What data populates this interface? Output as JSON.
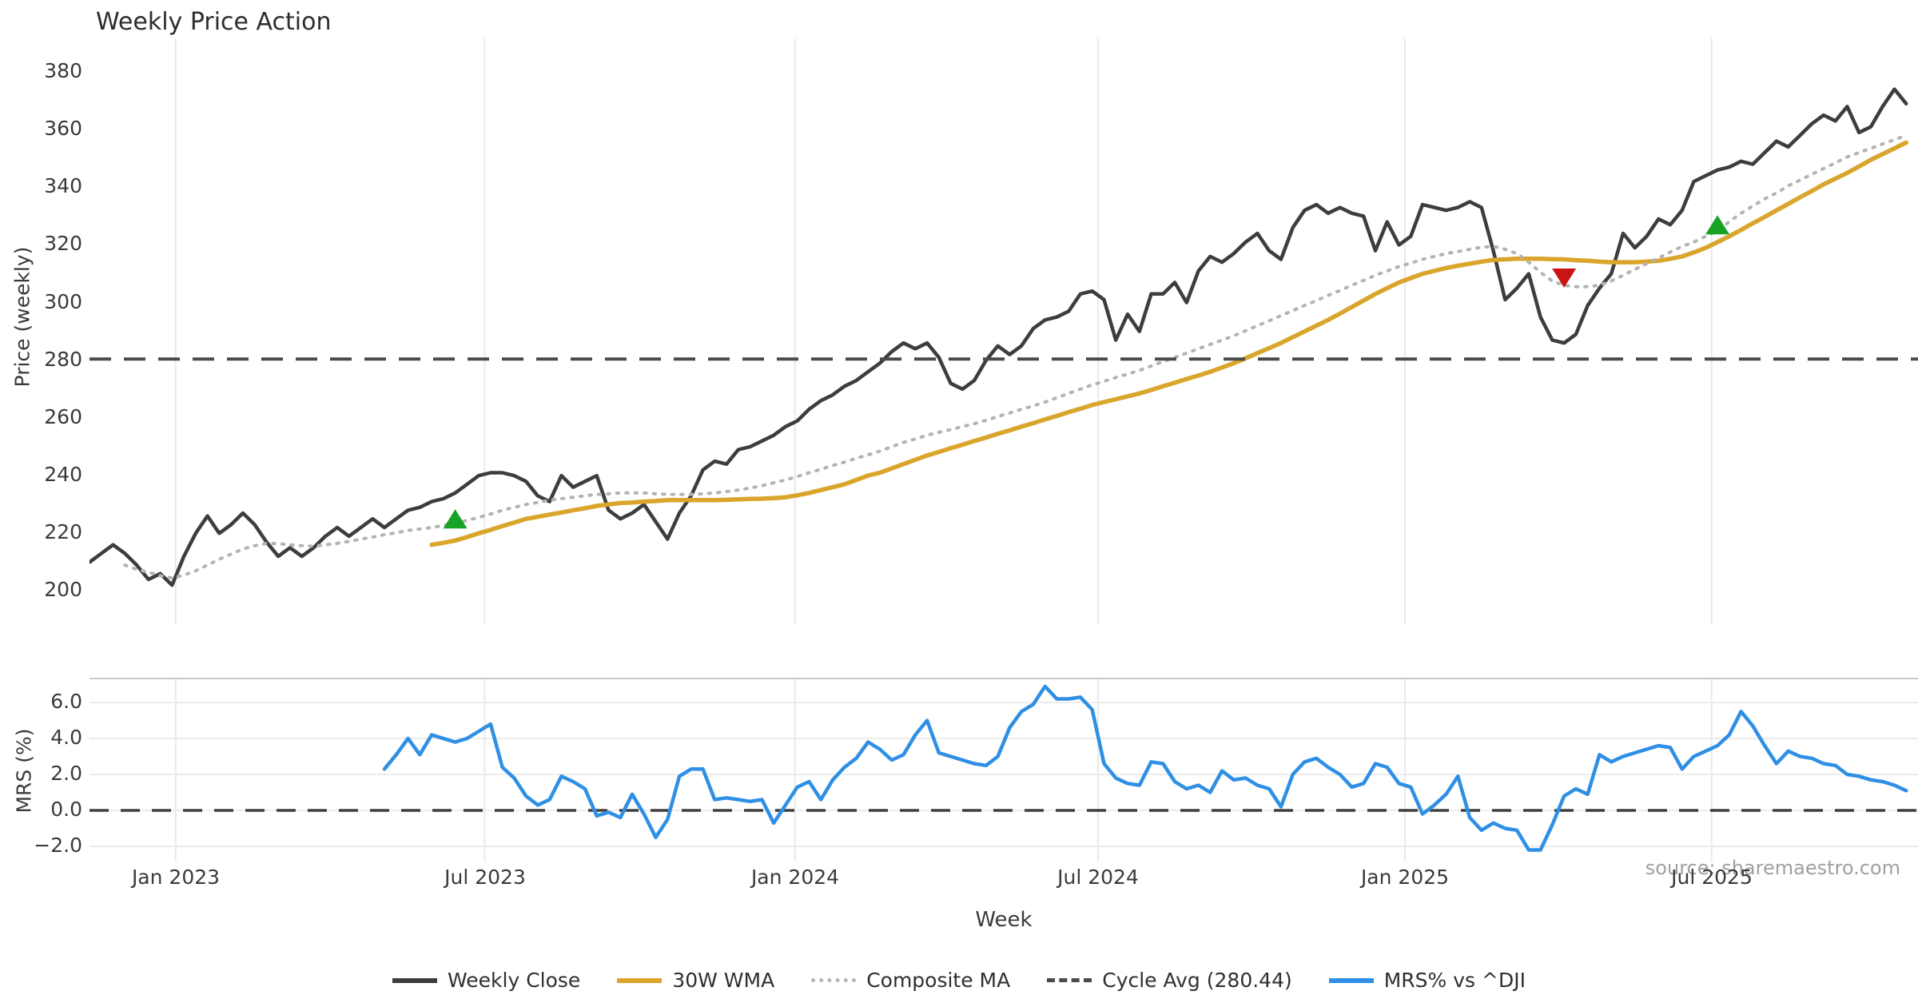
{
  "chart_data": {
    "type": "line",
    "title": "Weekly Price Action",
    "xlabel": "Week",
    "source_note": "source: sharemaestro.com",
    "weeks_total": 155,
    "x_ticks": [
      {
        "week": 7.3,
        "label": "Jan 2023"
      },
      {
        "week": 33.5,
        "label": "Jul 2023"
      },
      {
        "week": 59.8,
        "label": "Jan 2024"
      },
      {
        "week": 85.5,
        "label": "Jul 2024"
      },
      {
        "week": 111.5,
        "label": "Jan 2025"
      },
      {
        "week": 137.5,
        "label": "Jul 2025"
      }
    ],
    "panels": [
      {
        "name": "price",
        "ylabel": "Price (weekly)",
        "ytick_values": [
          380,
          360,
          340,
          320,
          300,
          280,
          260,
          240,
          220,
          200
        ],
        "ytick_labels": [
          "380",
          "360",
          "340",
          "320",
          "300",
          "280",
          "260",
          "240",
          "220",
          "200"
        ],
        "ylim": [
          193.5,
          391.7
        ],
        "grid_vertical": true,
        "grid_horizontal": false
      },
      {
        "name": "mrs",
        "ylabel": "MRS (%)",
        "ytick_values": [
          6,
          4,
          2,
          0,
          -2
        ],
        "ytick_labels": [
          "6.0",
          "4.0",
          "2.0",
          "0.0",
          "−2.0"
        ],
        "ylim": [
          -2.85,
          7.35
        ],
        "grid_vertical": true,
        "grid_horizontal": true,
        "zero_line_value": 0
      }
    ],
    "cycle_avg_value": 280.44,
    "series": [
      {
        "name": "Weekly Close",
        "panel": 0,
        "color": "#3d3d3d",
        "style": "solid",
        "width": 4.5,
        "start_week": 0,
        "values": [
          210,
          213,
          216,
          213,
          209,
          204,
          206,
          202,
          212,
          220,
          226,
          220,
          223,
          227,
          223,
          217,
          212,
          215,
          212,
          215,
          219,
          222,
          219,
          222,
          225,
          222,
          225,
          228,
          229,
          231,
          232,
          234,
          237,
          240,
          241,
          241,
          240,
          238,
          233,
          231,
          240,
          236,
          238,
          240,
          228,
          225,
          227,
          230,
          224,
          218,
          227,
          233,
          242,
          245,
          244,
          249,
          250,
          252,
          254,
          257,
          259,
          263,
          266,
          268,
          271,
          273,
          276,
          279,
          283,
          286,
          284,
          286,
          281,
          272,
          270,
          273,
          280,
          285,
          282,
          285,
          291,
          294,
          295,
          297,
          303,
          304,
          301,
          287,
          296,
          290,
          303,
          303,
          307,
          300,
          311,
          316,
          314,
          317,
          321,
          324,
          318,
          315,
          326,
          332,
          334,
          331,
          333,
          331,
          330,
          318,
          328,
          320,
          323,
          334,
          333,
          332,
          333,
          335,
          333,
          318,
          301,
          305,
          310,
          295,
          287,
          286,
          289,
          299,
          305,
          310,
          324,
          319,
          323,
          329,
          327,
          332,
          342,
          344,
          346,
          347,
          349,
          348,
          352,
          356,
          354,
          358,
          362,
          365,
          363,
          368,
          359,
          361,
          368,
          374,
          369
        ]
      },
      {
        "name": "30W WMA",
        "panel": 0,
        "color": "#d9a52b",
        "style": "solid",
        "width": 5.5,
        "start_week": 29,
        "values": [
          216,
          216.7,
          217.5,
          218.7,
          220,
          221.2,
          222.5,
          223.7,
          225,
          225.7,
          226.5,
          227.2,
          228,
          228.7,
          229.5,
          230,
          230.5,
          230.7,
          231,
          231.2,
          231.5,
          231.5,
          231.5,
          231.5,
          231.5,
          231.6,
          231.8,
          231.9,
          232,
          232.2,
          232.5,
          233.2,
          234,
          235,
          236,
          237,
          238.5,
          240,
          241,
          242.5,
          244,
          245.5,
          247,
          248.2,
          249.5,
          250.7,
          252,
          253.2,
          254.5,
          255.7,
          257,
          258.2,
          259.5,
          260.7,
          262,
          263.2,
          264.5,
          265.5,
          266.5,
          267.5,
          268.5,
          269.7,
          271,
          272.2,
          273.5,
          274.7,
          276,
          277.5,
          279,
          280.7,
          282.5,
          284.2,
          286,
          288,
          290,
          292,
          294,
          296.2,
          298.5,
          300.7,
          303,
          305,
          307,
          308.5,
          310,
          311,
          312,
          312.8,
          313.5,
          314.2,
          314.8,
          315,
          315.2,
          315.2,
          315.2,
          315.1,
          315,
          314.7,
          314.5,
          314.2,
          314,
          314,
          314,
          314.2,
          314.5,
          315.2,
          316,
          317.4,
          319,
          321,
          323,
          325.2,
          327.5,
          329.7,
          332,
          334.2,
          336.5,
          338.7,
          341,
          343,
          345,
          347.2,
          349.5,
          351.5,
          353.5,
          355.5
        ]
      },
      {
        "name": "Composite MA",
        "panel": 0,
        "color": "#b3b3b3",
        "style": "dotted",
        "width": 4,
        "start_week": 3,
        "values": [
          209,
          207.5,
          206.5,
          205.3,
          204.5,
          205.5,
          207,
          209,
          211,
          212.8,
          214.5,
          215.7,
          216.5,
          216.4,
          216,
          215.7,
          215.5,
          216,
          216.5,
          217.2,
          218,
          218.7,
          219.5,
          220.2,
          221,
          221.5,
          222,
          222.7,
          223.5,
          224.5,
          225.5,
          226.7,
          228,
          229,
          230,
          230.7,
          231.5,
          232,
          232.5,
          233,
          233.5,
          233.7,
          234,
          234,
          234,
          233.7,
          233.5,
          233.5,
          233.5,
          233.7,
          234,
          234.5,
          235,
          235.7,
          236.5,
          237.5,
          238.5,
          239.7,
          241,
          242.2,
          243.5,
          244.7,
          246,
          247.2,
          248.5,
          250,
          251.5,
          252.7,
          254,
          255,
          256,
          257,
          258,
          259.2,
          260.5,
          261.7,
          263,
          264.2,
          265.5,
          267,
          268.5,
          270,
          271.5,
          272.7,
          274,
          275.2,
          276.5,
          278,
          279.5,
          281,
          282.5,
          284,
          285.5,
          287,
          288.5,
          290.2,
          292,
          293.7,
          295.5,
          297.2,
          299,
          300.7,
          302.5,
          304.2,
          306,
          307.7,
          309.5,
          311,
          312.5,
          313.7,
          315,
          316,
          317,
          317.7,
          318.5,
          319.2,
          319.5,
          318.5,
          317,
          314,
          310.5,
          307.5,
          306,
          305.5,
          305.5,
          306,
          307.5,
          309.5,
          311.5,
          313.5,
          315.5,
          317.5,
          319.5,
          321,
          323,
          325,
          328,
          331,
          333.5,
          336,
          338,
          340.5,
          342.5,
          344.5,
          346.5,
          348.5,
          350.5,
          352,
          353.5,
          355,
          356.5,
          358
        ]
      },
      {
        "name": "Cycle Avg (280.44)",
        "panel": 0,
        "color": "#4a4a4a",
        "style": "dashed",
        "width": 4,
        "hline": true,
        "value": 280.44
      },
      {
        "name": "MRS% vs ^DJI",
        "panel": 1,
        "color": "#2e8fe5",
        "style": "solid",
        "width": 4.5,
        "start_week": 25,
        "values": [
          2.3,
          3.1,
          4.0,
          3.1,
          4.2,
          4.0,
          3.8,
          4.0,
          4.4,
          4.8,
          2.4,
          1.8,
          0.8,
          0.3,
          0.6,
          1.9,
          1.6,
          1.2,
          -0.3,
          -0.1,
          -0.4,
          0.9,
          -0.2,
          -1.5,
          -0.5,
          1.9,
          2.3,
          2.3,
          0.6,
          0.7,
          0.6,
          0.5,
          0.6,
          -0.7,
          0.3,
          1.3,
          1.6,
          0.6,
          1.7,
          2.4,
          2.9,
          3.8,
          3.4,
          2.8,
          3.1,
          4.2,
          5.0,
          3.2,
          3.0,
          2.8,
          2.6,
          2.5,
          3.0,
          4.6,
          5.5,
          5.9,
          6.9,
          6.2,
          6.2,
          6.3,
          5.6,
          2.6,
          1.8,
          1.5,
          1.4,
          2.7,
          2.6,
          1.6,
          1.2,
          1.4,
          1.0,
          2.2,
          1.7,
          1.8,
          1.4,
          1.2,
          0.2,
          2.0,
          2.7,
          2.9,
          2.4,
          2.0,
          1.3,
          1.5,
          2.6,
          2.4,
          1.5,
          1.3,
          -0.2,
          0.3,
          0.9,
          1.9,
          -0.4,
          -1.1,
          -0.7,
          -1.0,
          -1.1,
          -2.2,
          -2.2,
          -0.8,
          0.8,
          1.2,
          0.9,
          3.1,
          2.7,
          3.0,
          3.2,
          3.4,
          3.6,
          3.5,
          2.3,
          3.0,
          3.3,
          3.6,
          4.2,
          5.5,
          4.7,
          3.6,
          2.6,
          3.3,
          3.0,
          2.9,
          2.6,
          2.5,
          2.0,
          1.9,
          1.7,
          1.6,
          1.4,
          1.1
        ]
      }
    ],
    "markers": [
      {
        "shape": "triangle-up",
        "color": "#18a327",
        "week": 31,
        "price": 225
      },
      {
        "shape": "triangle-down",
        "color": "#c81414",
        "week": 125,
        "price": 308.5
      },
      {
        "shape": "triangle-up",
        "color": "#18a327",
        "week": 138,
        "price": 327
      }
    ],
    "legend": [
      {
        "label": "Weekly Close",
        "color": "#3d3d3d",
        "style": "solid"
      },
      {
        "label": "30W WMA",
        "color": "#d9a52b",
        "style": "solid"
      },
      {
        "label": "Composite MA",
        "color": "#b3b3b3",
        "style": "dotted"
      },
      {
        "label": "Cycle Avg (280.44)",
        "color": "#4a4a4a",
        "style": "dashed"
      },
      {
        "label": "MRS% vs ^DJI",
        "color": "#2e8fe5",
        "style": "solid"
      }
    ],
    "colors": {
      "grid_vertical": "#e8e9ee",
      "grid_horizontal": "#ececec",
      "panel_spine": "#c9c9c9",
      "zero_dash": "#3f3f3f",
      "background": "#ffffff"
    }
  }
}
